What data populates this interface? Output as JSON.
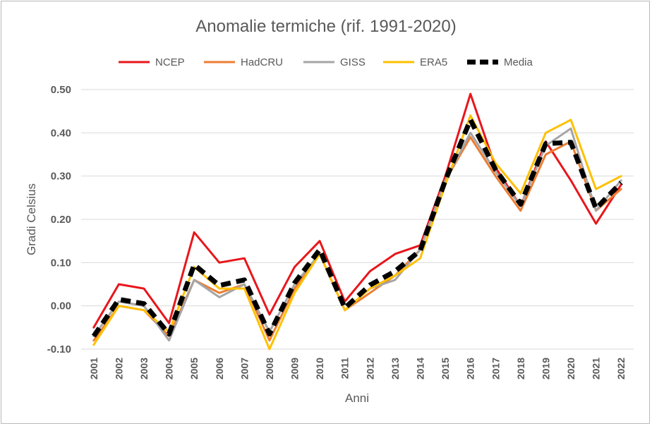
{
  "chart_data": {
    "type": "line",
    "title": "Anomalie termiche (rif. 1991-2020)",
    "xlabel": "Anni",
    "ylabel": "Gradi Celsius",
    "ylim": [
      -0.1,
      0.5
    ],
    "yticks": [
      -0.1,
      0.0,
      0.1,
      0.2,
      0.3,
      0.4,
      0.5
    ],
    "ytick_labels": [
      "-0.10",
      "0.00",
      "0.10",
      "0.20",
      "0.30",
      "0.40",
      "0.50"
    ],
    "grid": "horizontal",
    "legend_position": "top",
    "categories": [
      "2001",
      "2002",
      "2003",
      "2004",
      "2005",
      "2006",
      "2007",
      "2008",
      "2009",
      "2010",
      "2011",
      "2012",
      "2013",
      "2014",
      "2015",
      "2016",
      "2017",
      "2018",
      "2019",
      "2020",
      "2021",
      "2022"
    ],
    "series": [
      {
        "name": "NCEP",
        "color": "#e8161b",
        "dashed": false,
        "values": [
          -0.05,
          0.05,
          0.04,
          -0.04,
          0.17,
          0.1,
          0.11,
          -0.02,
          0.09,
          0.15,
          0.01,
          0.08,
          0.12,
          0.14,
          0.3,
          0.49,
          0.32,
          0.23,
          0.38,
          0.29,
          0.19,
          0.28
        ]
      },
      {
        "name": "HadCRU",
        "color": "#ed7d31",
        "dashed": false,
        "values": [
          -0.08,
          0.0,
          -0.01,
          -0.07,
          0.06,
          0.03,
          0.05,
          -0.08,
          0.04,
          0.12,
          -0.01,
          0.03,
          0.07,
          0.13,
          0.29,
          0.39,
          0.3,
          0.22,
          0.35,
          0.38,
          0.22,
          0.27
        ]
      },
      {
        "name": "GISS",
        "color": "#a5a5a5",
        "dashed": false,
        "values": [
          -0.07,
          0.01,
          0.0,
          -0.08,
          0.06,
          0.02,
          0.05,
          -0.06,
          0.05,
          0.12,
          -0.01,
          0.04,
          0.06,
          0.13,
          0.29,
          0.4,
          0.31,
          0.23,
          0.37,
          0.41,
          0.22,
          0.29
        ]
      },
      {
        "name": "ERA5",
        "color": "#ffc000",
        "dashed": false,
        "values": [
          -0.09,
          0.0,
          -0.01,
          -0.06,
          0.09,
          0.04,
          0.04,
          -0.1,
          0.03,
          0.12,
          -0.01,
          0.04,
          0.07,
          0.11,
          0.28,
          0.44,
          0.33,
          0.26,
          0.4,
          0.43,
          0.27,
          0.3
        ]
      },
      {
        "name": "Media",
        "color": "#000000",
        "dashed": true,
        "values": [
          -0.07,
          0.015,
          0.005,
          -0.065,
          0.095,
          0.047,
          0.06,
          -0.065,
          0.053,
          0.13,
          -0.005,
          0.048,
          0.08,
          0.128,
          0.29,
          0.43,
          0.315,
          0.235,
          0.375,
          0.378,
          0.225,
          0.285
        ]
      }
    ]
  }
}
